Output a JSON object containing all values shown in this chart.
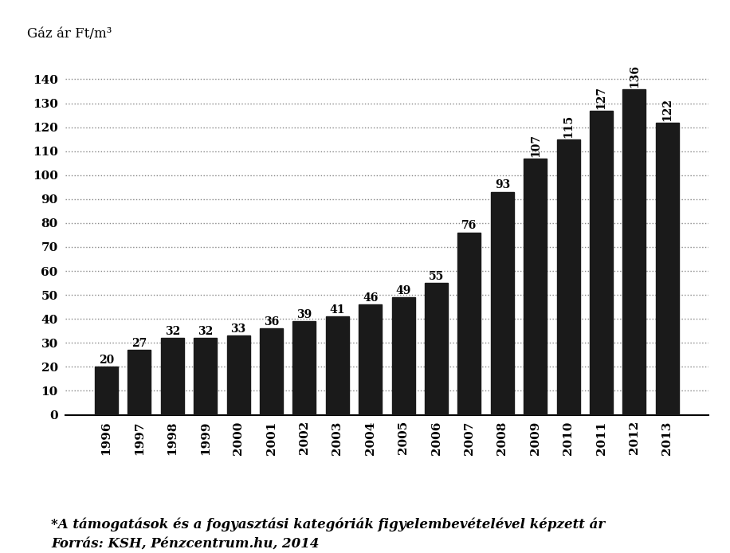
{
  "years": [
    "1996",
    "1997",
    "1998",
    "1999",
    "2000",
    "2001",
    "2002",
    "2003",
    "2004",
    "2005",
    "2006",
    "2007",
    "2008",
    "2009",
    "2010",
    "2011",
    "2012",
    "2013"
  ],
  "values": [
    20,
    27,
    32,
    32,
    33,
    36,
    39,
    41,
    46,
    49,
    55,
    76,
    93,
    107,
    115,
    127,
    136,
    122
  ],
  "bar_color": "#1a1a1a",
  "title": "Gáz ár Ft/m³",
  "ylim": [
    0,
    150
  ],
  "yticks": [
    0,
    10,
    20,
    30,
    40,
    50,
    60,
    70,
    80,
    90,
    100,
    110,
    120,
    130,
    140
  ],
  "footnote_line1": "*A támogatások és a fogyasztási kategóriák figyelembevételével képzett ár",
  "footnote_line2": "Forrás: KSH, Pénzcentrum.hu, 2014",
  "background_color": "#ffffff",
  "grid_color": "#888888",
  "label_fontsize": 11,
  "tick_fontsize": 11,
  "bar_label_fontsize": 10,
  "footnote_fontsize": 12,
  "title_fontsize": 12
}
